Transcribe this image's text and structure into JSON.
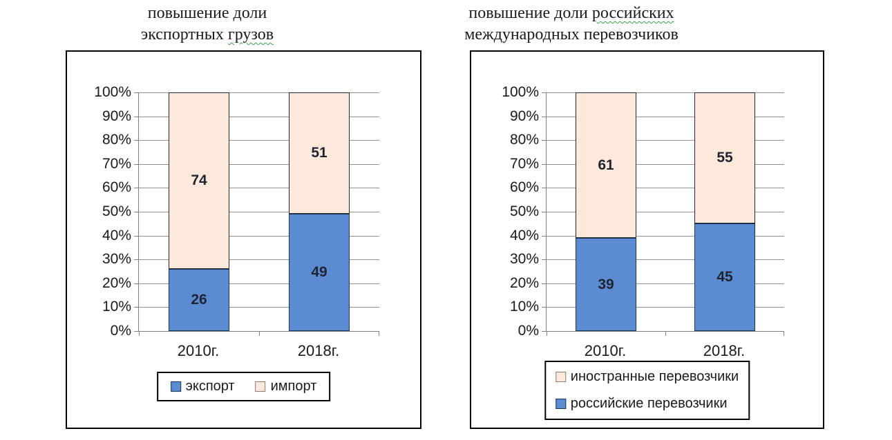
{
  "titles": {
    "left": {
      "line1": "повышение доли",
      "line2_prefix": "экспортных ",
      "line2_wavy": "грузов"
    },
    "right": {
      "line1_prefix": "повышение доли ",
      "line1_wavy": "российских",
      "line2": "международных перевозчиков"
    }
  },
  "colors": {
    "series_blue": "#5B8CD1",
    "series_cream": "#FCE9DC",
    "blue_border": "#17375E",
    "cream_border": "#262626",
    "gridline": "#919191",
    "axis": "#808080",
    "data_label": "#1f2433",
    "wavy_underline": "#36A143",
    "frame_border": "#000000"
  },
  "chart_data": [
    {
      "type": "bar",
      "stacked": true,
      "percent_stacked": true,
      "title": "повышение доли экспортных грузов",
      "categories": [
        "2010г.",
        "2018г."
      ],
      "series": [
        {
          "name": "экспорт",
          "color": "#5B8CD1",
          "border": "#17375E",
          "values": [
            26,
            49
          ]
        },
        {
          "name": "импорт",
          "color": "#FCE9DC",
          "border": "#262626",
          "values": [
            74,
            51
          ]
        }
      ],
      "xlabel": "",
      "ylabel": "",
      "ylim": [
        0,
        100
      ],
      "ytick_step": 10,
      "ytick_suffix": "%",
      "grid": true,
      "legend": {
        "layout": "row",
        "position": "bottom",
        "items": [
          {
            "label": "экспорт",
            "color": "#5B8CD1",
            "border": "#17375E"
          },
          {
            "label": "импорт",
            "color": "#FCE9DC",
            "border": "#8C7B6B"
          }
        ]
      }
    },
    {
      "type": "bar",
      "stacked": true,
      "percent_stacked": true,
      "title": "повышение доли российских международных перевозчиков",
      "categories": [
        "2010г.",
        "2018г."
      ],
      "series": [
        {
          "name": "российские перевозчики",
          "color": "#5B8CD1",
          "border": "#17375E",
          "values": [
            39,
            45
          ]
        },
        {
          "name": "иностранные перевозчики",
          "color": "#FCE9DC",
          "border": "#262626",
          "values": [
            61,
            55
          ]
        }
      ],
      "xlabel": "",
      "ylabel": "",
      "ylim": [
        0,
        100
      ],
      "ytick_step": 10,
      "ytick_suffix": "%",
      "grid": true,
      "legend": {
        "layout": "column",
        "position": "bottom",
        "items": [
          {
            "label": "иностранные перевозчики",
            "color": "#FCE9DC",
            "border": "#8C7B6B"
          },
          {
            "label": "российские перевозчики",
            "color": "#5B8CD1",
            "border": "#17375E"
          }
        ]
      }
    }
  ]
}
